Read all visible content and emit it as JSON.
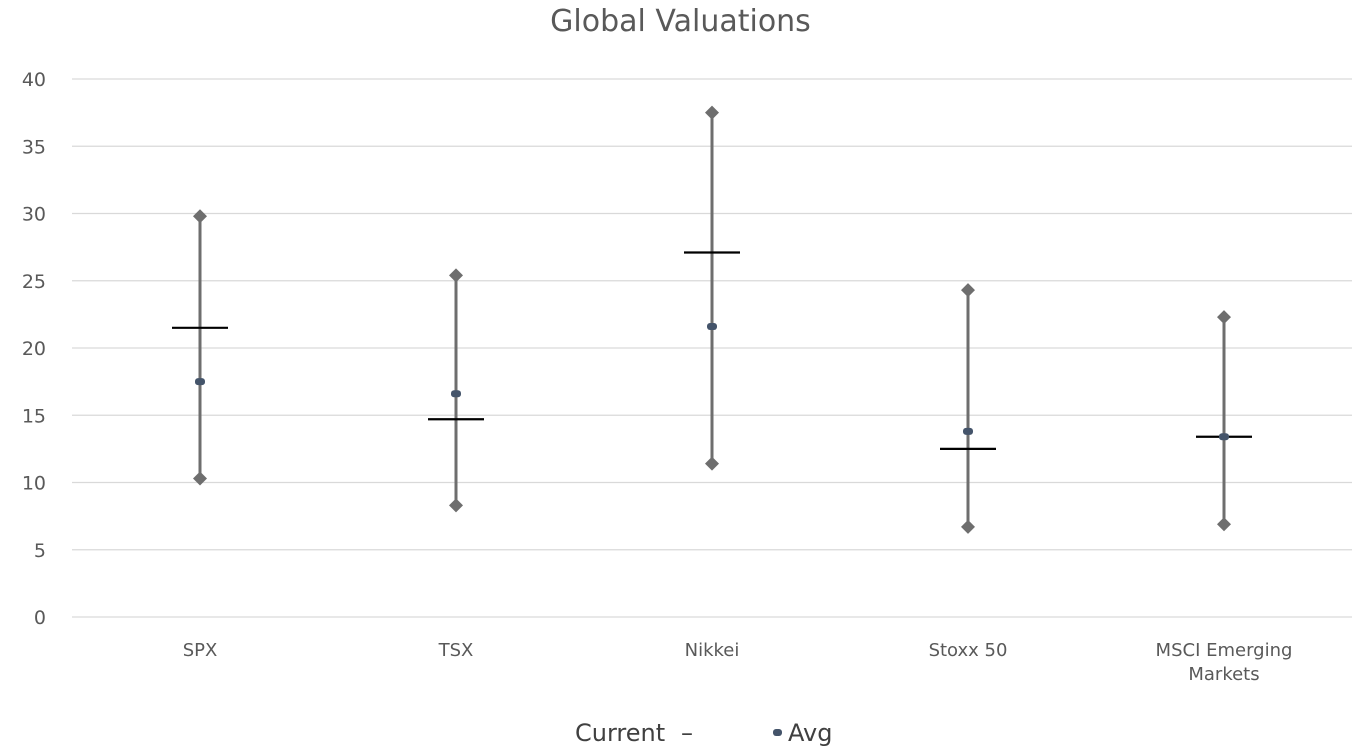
{
  "chart_data": {
    "type": "error-bar",
    "title": "Global Valuations",
    "categories": [
      "SPX",
      "TSX",
      "Nikkei",
      "Stoxx 50",
      "MSCI Emerging Markets"
    ],
    "high": [
      29.8,
      25.4,
      37.5,
      24.3,
      22.3
    ],
    "low": [
      10.3,
      8.3,
      11.4,
      6.7,
      6.9
    ],
    "current": [
      21.5,
      14.7,
      27.1,
      12.5,
      13.4
    ],
    "avg": [
      17.5,
      16.6,
      21.6,
      13.8,
      13.4
    ],
    "ylim": [
      0,
      40
    ],
    "yticks": [
      0,
      5,
      10,
      15,
      20,
      25,
      30,
      35,
      40
    ],
    "grid": true,
    "legend": {
      "position": "bottom",
      "entries": [
        {
          "name": "Current",
          "symbol": "–"
        },
        {
          "name": "Avg",
          "symbol": "dot"
        }
      ]
    },
    "colors": {
      "range": "#6e6e6e",
      "marker": "#6e6e6e",
      "current": "#000000",
      "avg": "#44546a",
      "grid": "#d9d9d9"
    }
  }
}
